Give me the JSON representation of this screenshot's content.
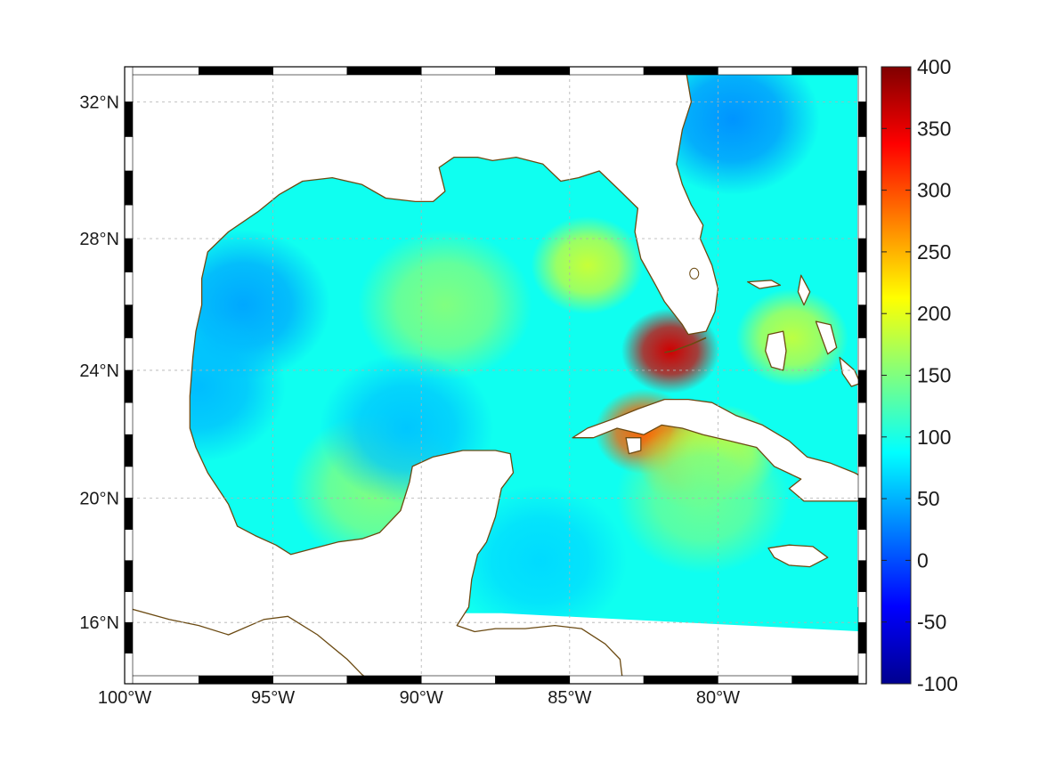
{
  "map": {
    "projection": "Mercator",
    "extent": {
      "lon": [
        -100,
        -75
      ],
      "lat": [
        14,
        33
      ]
    },
    "grid": true,
    "land_color": "#ffffff",
    "coast_color": "#6b4a12",
    "lat_ticks": [
      {
        "value": 32,
        "label": "32°N"
      },
      {
        "value": 28,
        "label": "28°N"
      },
      {
        "value": 24,
        "label": "24°N"
      },
      {
        "value": 20,
        "label": "20°N"
      },
      {
        "value": 16,
        "label": "16°N"
      }
    ],
    "lon_ticks": [
      {
        "value": -100,
        "label": "100°W"
      },
      {
        "value": -95,
        "label": "95°W"
      },
      {
        "value": -90,
        "label": "90°W"
      },
      {
        "value": -85,
        "label": "85°W"
      },
      {
        "value": -80,
        "label": "80°W"
      }
    ],
    "field_background_value": 95,
    "field_features": [
      {
        "lon": -81.6,
        "lat": 24.6,
        "value": 360
      },
      {
        "lon": -82.5,
        "lat": 22.1,
        "value": 290
      },
      {
        "lon": -80.8,
        "lat": 21.2,
        "value": 250
      },
      {
        "lon": -79.9,
        "lat": 21.4,
        "value": 190
      },
      {
        "lon": -84.4,
        "lat": 27.2,
        "value": 185
      },
      {
        "lon": -77.5,
        "lat": 25.0,
        "value": 180
      },
      {
        "lon": -89.2,
        "lat": 26.0,
        "value": 150
      },
      {
        "lon": -91.5,
        "lat": 20.3,
        "value": 150
      },
      {
        "lon": -80.5,
        "lat": 20.0,
        "value": 140
      },
      {
        "lon": -96.0,
        "lat": 26.0,
        "value": 45
      },
      {
        "lon": -97.5,
        "lat": 23.5,
        "value": 55
      },
      {
        "lon": -90.5,
        "lat": 22.2,
        "value": 60
      },
      {
        "lon": -79.5,
        "lat": 31.5,
        "value": 35
      },
      {
        "lon": -86.0,
        "lat": 18.0,
        "value": 70
      }
    ]
  },
  "colorbar": {
    "colormap": "jet",
    "min": -100,
    "max": 400,
    "ticks": [
      {
        "value": 400,
        "label": "400"
      },
      {
        "value": 350,
        "label": "350"
      },
      {
        "value": 300,
        "label": "300"
      },
      {
        "value": 250,
        "label": "250"
      },
      {
        "value": 200,
        "label": "200"
      },
      {
        "value": 150,
        "label": "150"
      },
      {
        "value": 100,
        "label": "100"
      },
      {
        "value": 50,
        "label": "50"
      },
      {
        "value": 0,
        "label": "0"
      },
      {
        "value": -50,
        "label": "-50"
      },
      {
        "value": -100,
        "label": "-100"
      }
    ]
  }
}
